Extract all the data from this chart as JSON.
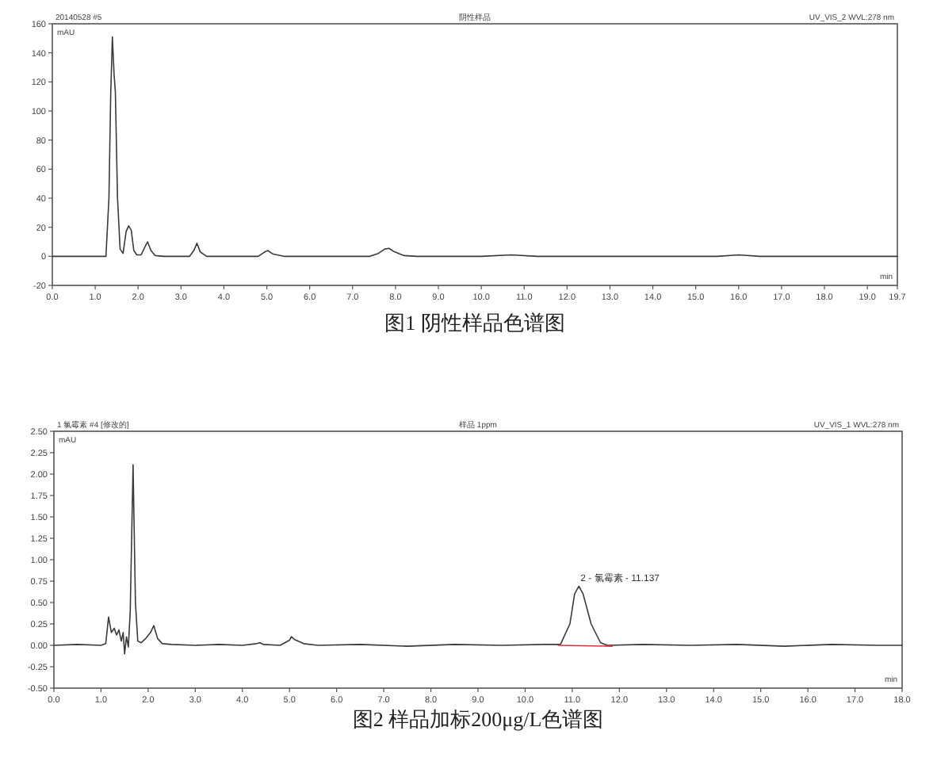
{
  "chart_data": [
    {
      "type": "line",
      "title": "图1  阴性样品色谱图",
      "xlabel": "min",
      "ylabel": "mAU",
      "annotations": [
        "20140528 #5",
        "阴性样品",
        "UV_VIS_2 WVL:278 nm"
      ],
      "x": [
        0,
        1.25,
        1.32,
        1.36,
        1.4,
        1.44,
        1.47,
        1.52,
        1.58,
        1.65,
        1.72,
        1.78,
        1.84,
        1.9,
        1.97,
        2.07,
        2.15,
        2.22,
        2.3,
        2.4,
        2.6,
        3.2,
        3.3,
        3.37,
        3.45,
        3.6,
        4.8,
        4.95,
        5.02,
        5.15,
        5.4,
        7.4,
        7.6,
        7.75,
        7.85,
        7.95,
        8.2,
        8.5,
        10.0,
        10.7,
        11.3,
        15.5,
        16.0,
        16.5,
        19.7
      ],
      "series": [
        {
          "color": "#3a3a3a",
          "values": [
            0,
            0,
            40,
            110,
            151,
            125,
            113,
            40,
            5,
            2,
            17,
            21,
            18,
            4,
            1,
            1,
            6,
            10,
            4,
            0.5,
            0,
            0,
            4,
            9,
            3,
            0,
            0,
            3,
            4,
            1.5,
            0,
            0,
            2,
            5,
            5.5,
            3.5,
            0.5,
            0,
            0,
            1,
            0,
            0,
            1,
            0,
            0
          ]
        }
      ],
      "xlim": [
        0,
        19.7
      ],
      "ylim": [
        -20,
        160
      ],
      "xticks": [
        {
          "value": 0,
          "label": "0.0"
        },
        {
          "value": 1,
          "label": "1.0"
        },
        {
          "value": 2,
          "label": "2.0"
        },
        {
          "value": 3,
          "label": "3.0"
        },
        {
          "value": 4,
          "label": "4.0"
        },
        {
          "value": 5,
          "label": "5.0"
        },
        {
          "value": 6,
          "label": "6.0"
        },
        {
          "value": 7,
          "label": "7.0"
        },
        {
          "value": 8,
          "label": "8.0"
        },
        {
          "value": 9,
          "label": "9.0"
        },
        {
          "value": 10,
          "label": "10.0"
        },
        {
          "value": 11,
          "label": "11.0"
        },
        {
          "value": 12,
          "label": "12.0"
        },
        {
          "value": 13,
          "label": "13.0"
        },
        {
          "value": 14,
          "label": "14.0"
        },
        {
          "value": 15,
          "label": "15.0"
        },
        {
          "value": 16,
          "label": "16.0"
        },
        {
          "value": 17,
          "label": "17.0"
        },
        {
          "value": 18,
          "label": "18.0"
        },
        {
          "value": 19,
          "label": "19.0"
        },
        19.7
      ],
      "yticks": [
        -20,
        0,
        20,
        40,
        60,
        80,
        100,
        120,
        140,
        160
      ]
    },
    {
      "type": "line",
      "title": "图2  样品加标200μg/L色谱图",
      "xlabel": "min",
      "ylabel": "mAU",
      "annotations": [
        "1 氯霉素 #4 [修改的]",
        "样品 1ppm",
        "UV_VIS_1 WVL:278 nm",
        {
          "text": "2 - 氯霉素 - 11.137",
          "x": 11.14,
          "y": 0.69
        }
      ],
      "x": [
        0,
        0.5,
        1.0,
        1.1,
        1.16,
        1.22,
        1.28,
        1.33,
        1.38,
        1.43,
        1.47,
        1.5,
        1.54,
        1.58,
        1.62,
        1.68,
        1.73,
        1.78,
        1.85,
        1.95,
        2.05,
        2.12,
        2.2,
        2.3,
        2.5,
        3.0,
        3.5,
        4.0,
        4.3,
        4.37,
        4.45,
        4.8,
        5.0,
        5.04,
        5.1,
        5.3,
        5.6,
        6.5,
        7.5,
        8.5,
        9.5,
        10.4,
        10.75,
        10.95,
        11.05,
        11.14,
        11.23,
        11.4,
        11.6,
        11.75,
        12.5,
        13.5,
        14.5,
        15.5,
        16.5,
        17.5,
        18.0
      ],
      "series": [
        {
          "color": "#3a3a3a",
          "values": [
            0,
            0.01,
            0,
            0.02,
            0.33,
            0.15,
            0.2,
            0.12,
            0.18,
            0.05,
            0.15,
            -0.1,
            0.1,
            -0.02,
            0.4,
            2.11,
            0.5,
            0.05,
            0.03,
            0.08,
            0.15,
            0.23,
            0.08,
            0.02,
            0.01,
            0,
            0.01,
            0,
            0.02,
            0.03,
            0.01,
            0,
            0.06,
            0.1,
            0.07,
            0.02,
            0,
            0.01,
            -0.01,
            0.01,
            0,
            0.01,
            0.01,
            0.25,
            0.6,
            0.69,
            0.6,
            0.25,
            0.03,
            0,
            0.01,
            0,
            0.01,
            -0.01,
            0.01,
            0,
            0
          ]
        },
        {
          "color": "#e0303a",
          "x": [
            10.7,
            11.85
          ],
          "values": [
            0,
            -0.01
          ]
        }
      ],
      "xlim": [
        0,
        18
      ],
      "ylim": [
        -0.5,
        2.5
      ],
      "xticks": [
        {
          "value": 0,
          "label": "0.0"
        },
        {
          "value": 1,
          "label": "1.0"
        },
        {
          "value": 2,
          "label": "2.0"
        },
        {
          "value": 3,
          "label": "3.0"
        },
        {
          "value": 4,
          "label": "4.0"
        },
        {
          "value": 5,
          "label": "5.0"
        },
        {
          "value": 6,
          "label": "6.0"
        },
        {
          "value": 7,
          "label": "7.0"
        },
        {
          "value": 8,
          "label": "8.0"
        },
        {
          "value": 9,
          "label": "9.0"
        },
        {
          "value": 10,
          "label": "10.0"
        },
        {
          "value": 11,
          "label": "11.0"
        },
        {
          "value": 12,
          "label": "12.0"
        },
        {
          "value": 13,
          "label": "13.0"
        },
        {
          "value": 14,
          "label": "14.0"
        },
        {
          "value": 15,
          "label": "15.0"
        },
        {
          "value": 16,
          "label": "16.0"
        },
        {
          "value": 17,
          "label": "17.0"
        },
        {
          "value": 18,
          "label": "18.0"
        }
      ],
      "yticks": [
        {
          "value": -0.5,
          "label": "-0.50"
        },
        {
          "value": -0.25,
          "label": "-0.25"
        },
        {
          "value": 0,
          "label": "0.00"
        },
        {
          "value": 0.25,
          "label": "0.25"
        },
        {
          "value": 0.5,
          "label": "0.50"
        },
        {
          "value": 0.75,
          "label": "0.75"
        },
        {
          "value": 1,
          "label": "1.00"
        },
        {
          "value": 1.25,
          "label": "1.25"
        },
        {
          "value": 1.5,
          "label": "1.50"
        },
        {
          "value": 1.75,
          "label": "1.75"
        },
        {
          "value": 2,
          "label": "2.00"
        },
        {
          "value": 2.25,
          "label": "2.25"
        },
        {
          "value": 2.5,
          "label": "2.50"
        }
      ]
    }
  ]
}
